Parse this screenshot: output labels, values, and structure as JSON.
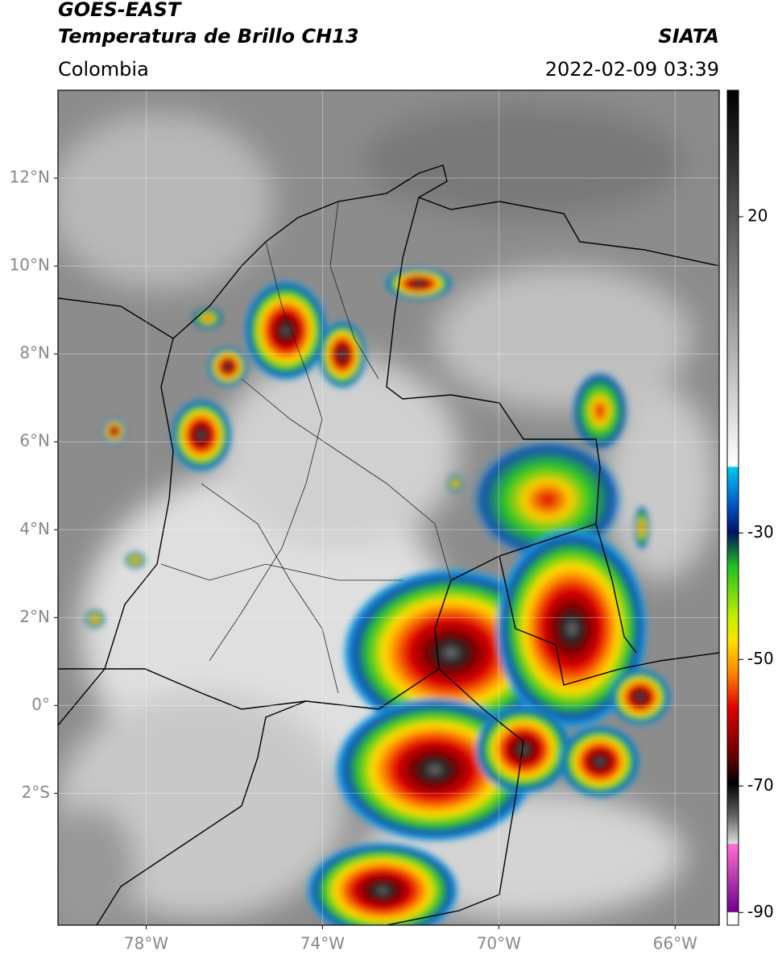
{
  "chart_data": {
    "type": "map",
    "title": "GOES-EAST",
    "subtitle": "Temperatura de Brillo CH13",
    "source": "SIATA",
    "region": "Colombia",
    "datetime": "2022-02-09 03:39",
    "xlim": [
      -80,
      -65
    ],
    "ylim": [
      -5,
      14
    ],
    "xticks": [
      {
        "value": -78,
        "label": "78°W"
      },
      {
        "value": -74,
        "label": "74°W"
      },
      {
        "value": -70,
        "label": "70°W"
      },
      {
        "value": -66,
        "label": "66°W"
      }
    ],
    "yticks": [
      {
        "value": 12,
        "label": "12°N"
      },
      {
        "value": 10,
        "label": "10°N"
      },
      {
        "value": 8,
        "label": "8°N"
      },
      {
        "value": 6,
        "label": "6°N"
      },
      {
        "value": 4,
        "label": "4°N"
      },
      {
        "value": 2,
        "label": "2°N"
      },
      {
        "value": 0,
        "label": "0°"
      },
      {
        "value": -2,
        "label": "2°S"
      }
    ],
    "grid": true,
    "colorbar": {
      "lim": [
        -92,
        40
      ],
      "ticks": [
        20,
        -30,
        -50,
        -70,
        -90
      ]
    }
  }
}
